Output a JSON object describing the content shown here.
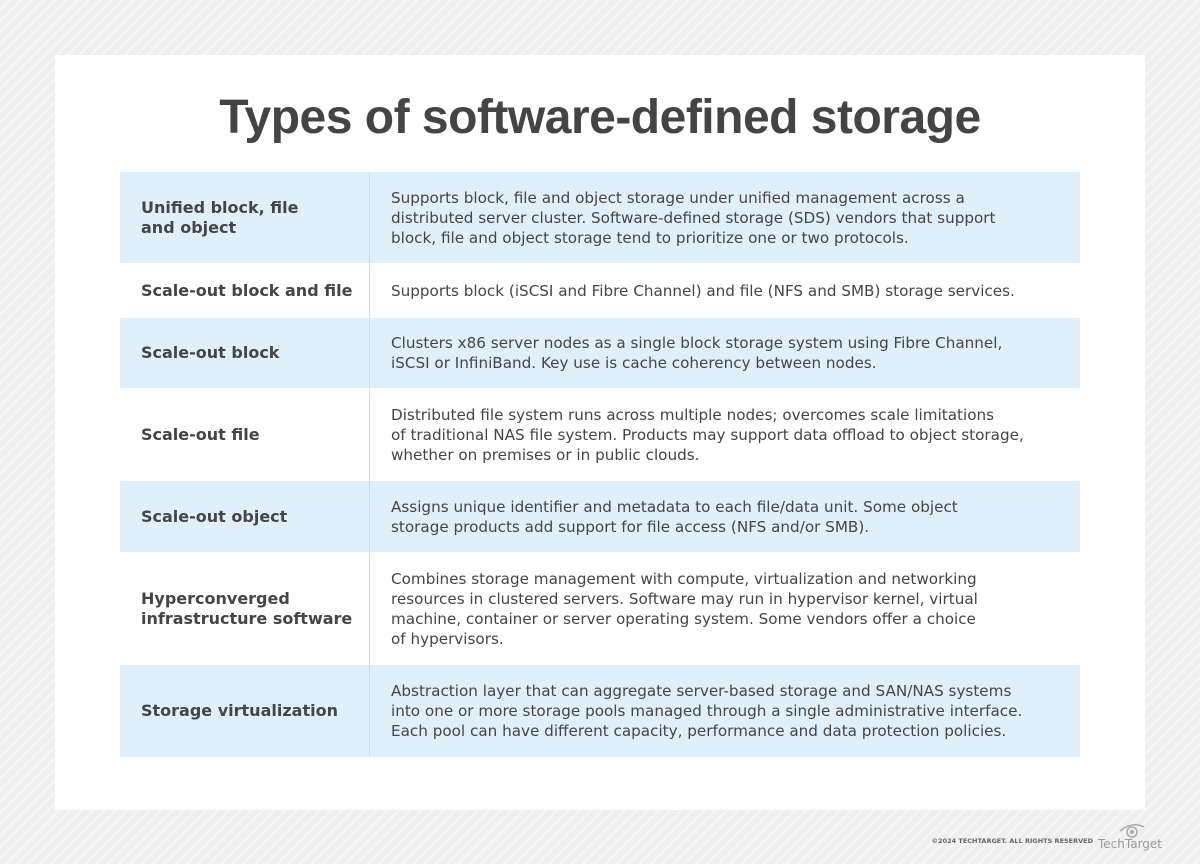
{
  "title": "Types of software-defined storage",
  "rows": [
    {
      "type": "Unified block, file\nand object",
      "description": "Supports block, file and object storage under unified management across a\ndistributed server cluster. Software-defined storage (SDS) vendors that support\nblock, file and object storage tend to prioritize one or two protocols."
    },
    {
      "type": "Scale-out block and file",
      "description": "Supports block (iSCSI and Fibre Channel) and file (NFS and SMB) storage services."
    },
    {
      "type": "Scale-out block",
      "description": "Clusters x86 server nodes as a single block storage system using Fibre Channel,\niSCSI or InfiniBand. Key use is cache coherency between nodes."
    },
    {
      "type": "Scale-out file",
      "description": "Distributed file system runs across multiple nodes; overcomes scale limitations\nof traditional NAS file system. Products may support data offload to object storage,\nwhether on premises or in public clouds."
    },
    {
      "type": "Scale-out object",
      "description": "Assigns unique identifier and metadata to each file/data unit. Some object\nstorage products add support for file access (NFS and/or SMB)."
    },
    {
      "type": "Hyperconverged\ninfrastructure software",
      "description": "Combines storage management with compute, virtualization and networking\nresources in clustered servers. Software may run in hypervisor kernel, virtual\nmachine, container or server operating system. Some vendors offer a choice\nof hypervisors."
    },
    {
      "type": "Storage virtualization",
      "description": "Abstraction layer that can aggregate server-based storage and SAN/NAS systems\ninto one or more storage pools managed through a single administrative interface.\nEach pool can have different capacity, performance and data protection policies."
    }
  ],
  "footer": {
    "copyright": "©2024 TECHTARGET. ALL RIGHTS RESERVED",
    "logo": "TechTarget"
  },
  "colors": {
    "shaded_row": "#dff0fb",
    "text": "#454545"
  }
}
